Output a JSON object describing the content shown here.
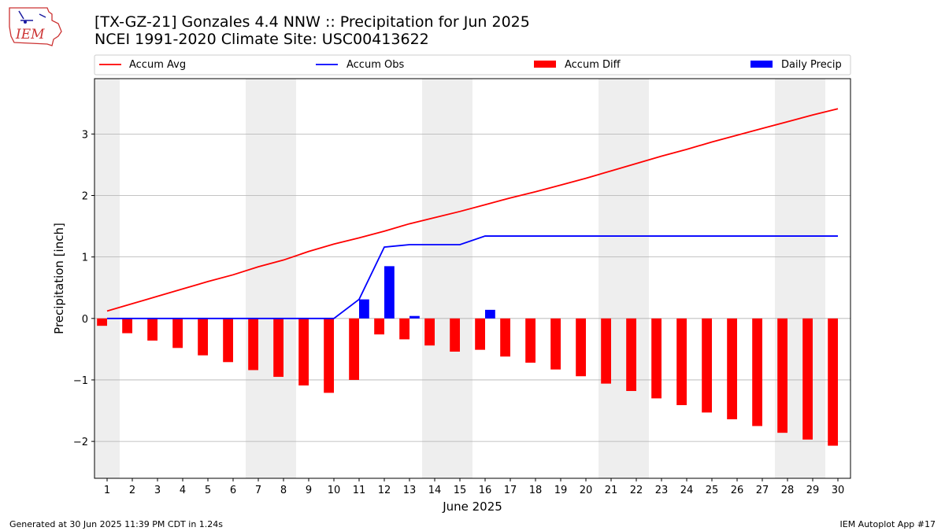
{
  "logo": {
    "text": "IEM"
  },
  "header": {
    "title_line1": "[TX-GZ-21] Gonzales 4.4 NNW :: Precipitation for Jun 2025",
    "title_line2": "NCEI 1991-2020 Climate Site: USC00413622"
  },
  "footer": {
    "left": "Generated at 30 Jun 2025 11:39 PM CDT in 1.24s",
    "right": "IEM Autoplot App #17"
  },
  "colors": {
    "accum_avg": "#ff0000",
    "accum_obs": "#0000ff",
    "accum_diff": "#ff0000",
    "daily_precip": "#0000ff",
    "weekend_shade": "#eeeeee",
    "grid": "#b0b0b0"
  },
  "chart_data": {
    "type": "bar",
    "xlabel": "June 2025",
    "ylabel": "Precipitation [inch]",
    "xlim": [
      0.5,
      30.5
    ],
    "ylim": [
      -2.6,
      3.9
    ],
    "yticks": [
      -2,
      -1,
      0,
      1,
      2,
      3
    ],
    "ytick_labels": [
      "−2",
      "−1",
      "0",
      "1",
      "2",
      "3"
    ],
    "grid": "horizontal",
    "legend_placement": "top, above plot",
    "days": [
      1,
      2,
      3,
      4,
      5,
      6,
      7,
      8,
      9,
      10,
      11,
      12,
      13,
      14,
      15,
      16,
      17,
      18,
      19,
      20,
      21,
      22,
      23,
      24,
      25,
      26,
      27,
      28,
      29,
      30
    ],
    "weekend_shaded_days": [
      1,
      7,
      8,
      14,
      15,
      21,
      22,
      28,
      29
    ],
    "series": [
      {
        "name": "Accum Avg",
        "kind": "line",
        "values": [
          0.12,
          0.24,
          0.36,
          0.48,
          0.6,
          0.71,
          0.84,
          0.95,
          1.09,
          1.21,
          1.31,
          1.42,
          1.54,
          1.64,
          1.74,
          1.85,
          1.96,
          2.06,
          2.17,
          2.28,
          2.4,
          2.52,
          2.64,
          2.75,
          2.87,
          2.98,
          3.09,
          3.2,
          3.31,
          3.41
        ]
      },
      {
        "name": "Accum Obs",
        "kind": "line",
        "values": [
          0,
          0,
          0,
          0,
          0,
          0,
          0,
          0,
          0,
          0,
          0.31,
          1.16,
          1.2,
          1.2,
          1.2,
          1.34,
          1.34,
          1.34,
          1.34,
          1.34,
          1.34,
          1.34,
          1.34,
          1.34,
          1.34,
          1.34,
          1.34,
          1.34,
          1.34,
          1.34
        ]
      },
      {
        "name": "Accum Diff",
        "kind": "bar",
        "values": [
          -0.12,
          -0.24,
          -0.36,
          -0.48,
          -0.6,
          -0.71,
          -0.84,
          -0.95,
          -1.09,
          -1.21,
          -1.0,
          -0.26,
          -0.34,
          -0.44,
          -0.54,
          -0.51,
          -0.62,
          -0.72,
          -0.83,
          -0.94,
          -1.06,
          -1.18,
          -1.3,
          -1.41,
          -1.53,
          -1.64,
          -1.75,
          -1.86,
          -1.97,
          -2.07
        ]
      },
      {
        "name": "Daily Precip",
        "kind": "bar",
        "values": [
          0,
          0,
          0,
          0,
          0,
          0,
          0,
          0,
          0,
          0,
          0.31,
          0.85,
          0.04,
          0,
          0,
          0.14,
          0,
          0,
          0,
          0,
          0,
          0,
          0,
          0,
          0,
          0,
          0,
          0,
          0,
          0
        ]
      }
    ]
  }
}
